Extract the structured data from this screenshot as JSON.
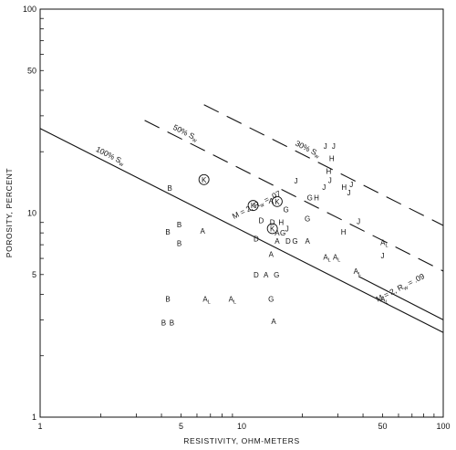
{
  "chart_data": {
    "type": "scatter",
    "title": "",
    "xlabel": "RESISTIVITY, OHM-METERS",
    "ylabel": "POROSITY, PERCENT",
    "xscale": "log",
    "yscale": "log",
    "xlim": [
      1,
      100
    ],
    "ylim": [
      1,
      100
    ],
    "x_ticks": [
      1,
      5,
      10,
      50,
      100
    ],
    "y_ticks": [
      1,
      5,
      10,
      50,
      100
    ],
    "grid": false,
    "colors": {
      "ink": "#111111"
    },
    "lines": [
      {
        "label": "100% S",
        "sub": "w",
        "style": "solid",
        "points": [
          [
            1,
            26.0
          ],
          [
            100,
            2.6
          ]
        ]
      },
      {
        "label": "50% S",
        "sub": "w",
        "style": "dashed",
        "points": [
          [
            3.3,
            28.5
          ],
          [
            100,
            5.2
          ]
        ]
      },
      {
        "label": "30% S",
        "sub": "w",
        "style": "dashed",
        "points": [
          [
            6.5,
            34.0
          ],
          [
            100,
            8.7
          ]
        ]
      },
      {
        "label": "",
        "style": "solid",
        "points": [
          [
            38,
            4.9
          ],
          [
            100,
            3.0
          ]
        ]
      }
    ],
    "annotations": [
      {
        "text": "M = 2,  R",
        "sub": "w",
        "after": " = .07",
        "x": 12.0,
        "y": 10.7,
        "angle": -27
      },
      {
        "text": "M = 2,  R",
        "sub": "w",
        "after": " = .09",
        "x": 62.0,
        "y": 4.2,
        "angle": -27
      }
    ],
    "points": [
      {
        "label": "B",
        "x": 4.4,
        "y": 13.3
      },
      {
        "label": "B",
        "x": 4.9,
        "y": 8.8
      },
      {
        "label": "B",
        "x": 4.3,
        "y": 8.1
      },
      {
        "label": "B",
        "x": 4.9,
        "y": 7.1
      },
      {
        "label": "A",
        "x": 6.4,
        "y": 8.2
      },
      {
        "label": "B",
        "x": 4.3,
        "y": 3.8
      },
      {
        "label": "B",
        "x": 4.1,
        "y": 2.9
      },
      {
        "label": "B",
        "x": 4.5,
        "y": 2.9
      },
      {
        "label": "A",
        "sub": "L",
        "x": 6.7,
        "y": 3.8
      },
      {
        "label": "A",
        "sub": "L",
        "x": 9.0,
        "y": 3.8
      },
      {
        "label": "K",
        "circled": true,
        "x": 6.5,
        "y": 14.6
      },
      {
        "label": "K",
        "circled": true,
        "x": 11.4,
        "y": 10.9
      },
      {
        "label": "K",
        "circled": true,
        "x": 15.0,
        "y": 11.4
      },
      {
        "label": "K",
        "circled": true,
        "x": 14.2,
        "y": 8.4
      },
      {
        "label": "A",
        "x": 14.0,
        "y": 11.5
      },
      {
        "label": "G",
        "x": 16.6,
        "y": 10.4
      },
      {
        "label": "D",
        "x": 12.5,
        "y": 9.2
      },
      {
        "label": "D",
        "x": 14.2,
        "y": 9.0
      },
      {
        "label": "H",
        "x": 15.7,
        "y": 9.0
      },
      {
        "label": "D",
        "x": 11.8,
        "y": 7.5
      },
      {
        "label": "J",
        "x": 16.8,
        "y": 8.4
      },
      {
        "label": "A",
        "x": 15.0,
        "y": 8.0
      },
      {
        "label": "G",
        "x": 16.0,
        "y": 8.0
      },
      {
        "label": "A",
        "x": 15.0,
        "y": 7.3
      },
      {
        "label": "D",
        "x": 17.0,
        "y": 7.3
      },
      {
        "label": "G",
        "x": 18.4,
        "y": 7.3
      },
      {
        "label": "A",
        "x": 21.2,
        "y": 7.3
      },
      {
        "label": "A",
        "x": 14.0,
        "y": 6.3
      },
      {
        "label": "D",
        "x": 11.8,
        "y": 5.0
      },
      {
        "label": "A",
        "x": 13.2,
        "y": 5.0
      },
      {
        "label": "G",
        "x": 14.9,
        "y": 5.0
      },
      {
        "label": "G",
        "x": 14.0,
        "y": 3.8
      },
      {
        "label": "A",
        "x": 14.4,
        "y": 2.95
      },
      {
        "label": "G",
        "x": 21.2,
        "y": 9.4
      },
      {
        "label": "G",
        "x": 21.8,
        "y": 11.9
      },
      {
        "label": "H",
        "x": 23.5,
        "y": 11.9
      },
      {
        "label": "J",
        "x": 18.6,
        "y": 14.4
      },
      {
        "label": "J",
        "x": 26.0,
        "y": 21.3
      },
      {
        "label": "J",
        "x": 28.6,
        "y": 21.3
      },
      {
        "label": "H",
        "x": 28.0,
        "y": 18.6
      },
      {
        "label": "H",
        "x": 27.0,
        "y": 16.1
      },
      {
        "label": "J",
        "x": 27.4,
        "y": 14.5
      },
      {
        "label": "J",
        "x": 25.6,
        "y": 13.4
      },
      {
        "label": "H",
        "x": 32.2,
        "y": 13.4
      },
      {
        "label": "J",
        "x": 35.0,
        "y": 13.8
      },
      {
        "label": "J",
        "x": 34.0,
        "y": 12.6
      },
      {
        "label": "H",
        "x": 32.0,
        "y": 8.1
      },
      {
        "label": "J",
        "x": 38.0,
        "y": 9.1
      },
      {
        "label": "A",
        "sub": "L",
        "x": 26.5,
        "y": 6.1
      },
      {
        "label": "A",
        "sub": "L",
        "x": 29.6,
        "y": 6.1
      },
      {
        "label": "A",
        "sub": "L",
        "x": 37.5,
        "y": 5.2
      },
      {
        "label": "A",
        "sub": "L",
        "x": 51.0,
        "y": 7.2
      },
      {
        "label": "J",
        "x": 50.0,
        "y": 6.2
      },
      {
        "label": "A",
        "sub": "L",
        "x": 51.0,
        "y": 3.8
      }
    ]
  }
}
